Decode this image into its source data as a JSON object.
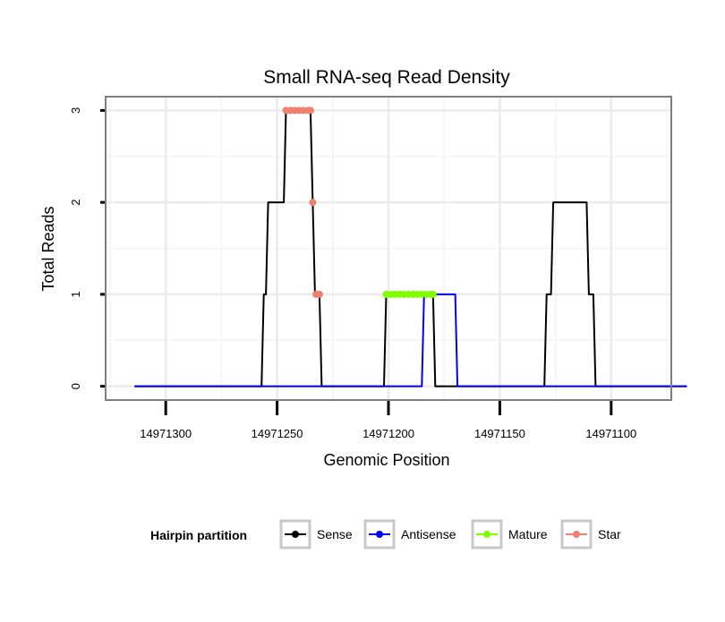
{
  "chart_data": {
    "type": "line",
    "title": "Small RNA-seq Read Density",
    "xlabel": "Genomic Position",
    "ylabel": "Total Reads",
    "x_reversed": true,
    "xlim": [
      14971327,
      14971073
    ],
    "ylim": [
      -0.15,
      3.15
    ],
    "x_ticks": [
      14971300,
      14971250,
      14971200,
      14971150,
      14971100
    ],
    "x_tick_labels": [
      "14971300",
      "14971250",
      "14971200",
      "14971150",
      "14971100"
    ],
    "y_ticks": [
      0,
      1,
      2,
      3
    ],
    "y_tick_labels": [
      "0",
      "1",
      "2",
      "3"
    ],
    "grid": true,
    "legend": {
      "title": "Hairpin partition",
      "position": "bottom",
      "entries": [
        {
          "name": "Sense",
          "color": "#000000"
        },
        {
          "name": "Antisense",
          "color": "#0000ff"
        },
        {
          "name": "Mature",
          "color": "#7fff00"
        },
        {
          "name": "Star",
          "color": "#f08070"
        }
      ]
    },
    "series": [
      {
        "name": "Sense",
        "color": "#000000",
        "style": "line",
        "points": [
          [
            14971314,
            0
          ],
          [
            14971257,
            0
          ],
          [
            14971256,
            1
          ],
          [
            14971255,
            1
          ],
          [
            14971254,
            2
          ],
          [
            14971247,
            2
          ],
          [
            14971246,
            3
          ],
          [
            14971235,
            3
          ],
          [
            14971234,
            2
          ],
          [
            14971233,
            1
          ],
          [
            14971231,
            1
          ],
          [
            14971230,
            0
          ],
          [
            14971202,
            0
          ],
          [
            14971201,
            1
          ],
          [
            14971180,
            1
          ],
          [
            14971179,
            0
          ],
          [
            14971130,
            0
          ],
          [
            14971129,
            1
          ],
          [
            14971127,
            1
          ],
          [
            14971126,
            2
          ],
          [
            14971111,
            2
          ],
          [
            14971110,
            1
          ],
          [
            14971108,
            1
          ],
          [
            14971107,
            0
          ],
          [
            14971066,
            0
          ]
        ]
      },
      {
        "name": "Antisense",
        "color": "#0000ff",
        "style": "line",
        "points": [
          [
            14971314,
            0
          ],
          [
            14971185,
            0
          ],
          [
            14971184,
            1
          ],
          [
            14971170,
            1
          ],
          [
            14971169,
            0
          ],
          [
            14971066,
            0
          ]
        ]
      },
      {
        "name": "Mature",
        "color": "#7fff00",
        "style": "dots",
        "points": [
          [
            14971201,
            1
          ],
          [
            14971199,
            1
          ],
          [
            14971197,
            1
          ],
          [
            14971195,
            1
          ],
          [
            14971193,
            1
          ],
          [
            14971191,
            1
          ],
          [
            14971189,
            1
          ],
          [
            14971187,
            1
          ],
          [
            14971185,
            1
          ],
          [
            14971183,
            1
          ],
          [
            14971181,
            1
          ],
          [
            14971180,
            1
          ]
        ]
      },
      {
        "name": "Star",
        "color": "#f08070",
        "style": "dots",
        "points": [
          [
            14971246,
            3
          ],
          [
            14971244,
            3
          ],
          [
            14971242,
            3
          ],
          [
            14971240,
            3
          ],
          [
            14971238,
            3
          ],
          [
            14971236,
            3
          ],
          [
            14971235,
            3
          ],
          [
            14971234,
            2
          ],
          [
            14971232.5,
            1
          ],
          [
            14971231,
            1
          ]
        ]
      }
    ]
  }
}
